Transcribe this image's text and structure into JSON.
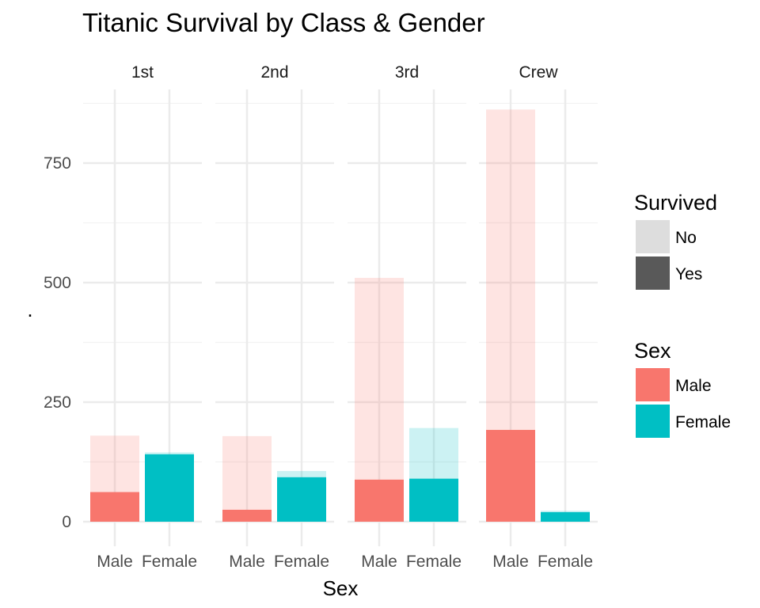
{
  "chart_data": {
    "type": "bar",
    "title": "Titanic Survival by Class & Gender",
    "xlabel": "Sex",
    "ylabel": ".",
    "ylim": [
      0,
      900
    ],
    "yticks": [
      0,
      250,
      500,
      750
    ],
    "grid": true,
    "facets": [
      "1st",
      "2nd",
      "3rd",
      "Crew"
    ],
    "categories": [
      "Male",
      "Female"
    ],
    "series": [
      {
        "name": "Yes",
        "facet_values": {
          "1st": [
            62,
            141
          ],
          "2nd": [
            25,
            93
          ],
          "3rd": [
            88,
            90
          ],
          "Crew": [
            192,
            20
          ]
        }
      },
      {
        "name": "No",
        "facet_values": {
          "1st": [
            118,
            4
          ],
          "2nd": [
            154,
            13
          ],
          "3rd": [
            422,
            106
          ],
          "Crew": [
            670,
            3
          ]
        }
      }
    ],
    "legends": [
      {
        "title": "Survived",
        "position": "right",
        "items": [
          {
            "label": "No",
            "color": "#DDDDDD"
          },
          {
            "label": "Yes",
            "color": "#595959"
          }
        ]
      },
      {
        "title": "Sex",
        "position": "right",
        "items": [
          {
            "label": "Male",
            "color": "#F8766D"
          },
          {
            "label": "Female",
            "color": "#00BFC4"
          }
        ]
      }
    ],
    "colors": {
      "Male": "#F8766D",
      "Female": "#00BFC4",
      "grid": "#EBEBEB"
    }
  }
}
